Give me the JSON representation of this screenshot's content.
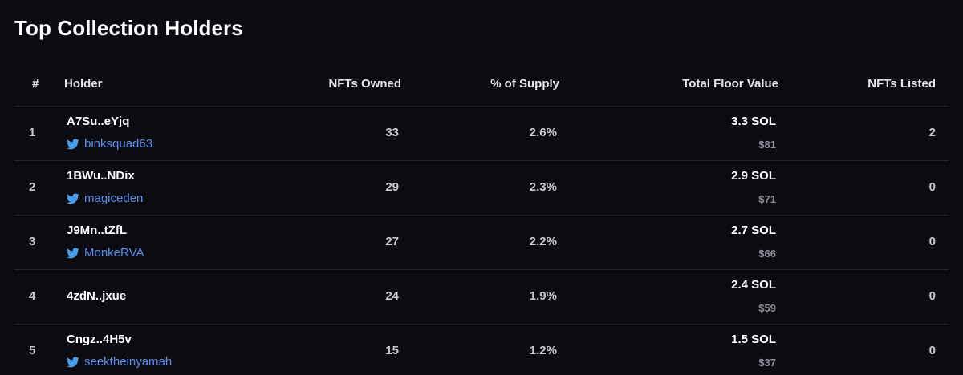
{
  "title": "Top Collection Holders",
  "columns": {
    "rank": "#",
    "holder": "Holder",
    "nfts_owned": "NFTs Owned",
    "supply": "% of Supply",
    "floor_value": "Total Floor Value",
    "listed": "NFTs Listed"
  },
  "colors": {
    "background": "#0b0b12",
    "twitter_link": "#5c8de8",
    "divider": "#24242e"
  },
  "rows": [
    {
      "rank": "1",
      "address": "A7Su..eYjq",
      "twitter": "binksquad63",
      "owned": "33",
      "supply": "2.6%",
      "floor_sol": "3.3 SOL",
      "floor_usd": "$81",
      "listed": "2"
    },
    {
      "rank": "2",
      "address": "1BWu..NDix",
      "twitter": "magiceden",
      "owned": "29",
      "supply": "2.3%",
      "floor_sol": "2.9 SOL",
      "floor_usd": "$71",
      "listed": "0"
    },
    {
      "rank": "3",
      "address": "J9Mn..tZfL",
      "twitter": "MonkeRVA",
      "owned": "27",
      "supply": "2.2%",
      "floor_sol": "2.7 SOL",
      "floor_usd": "$66",
      "listed": "0"
    },
    {
      "rank": "4",
      "address": "4zdN..jxue",
      "twitter": null,
      "owned": "24",
      "supply": "1.9%",
      "floor_sol": "2.4 SOL",
      "floor_usd": "$59",
      "listed": "0"
    },
    {
      "rank": "5",
      "address": "Cngz..4H5v",
      "twitter": "seektheinyamah",
      "owned": "15",
      "supply": "1.2%",
      "floor_sol": "1.5 SOL",
      "floor_usd": "$37",
      "listed": "0"
    }
  ],
  "icons": {
    "twitter": "twitter-bird-icon"
  }
}
